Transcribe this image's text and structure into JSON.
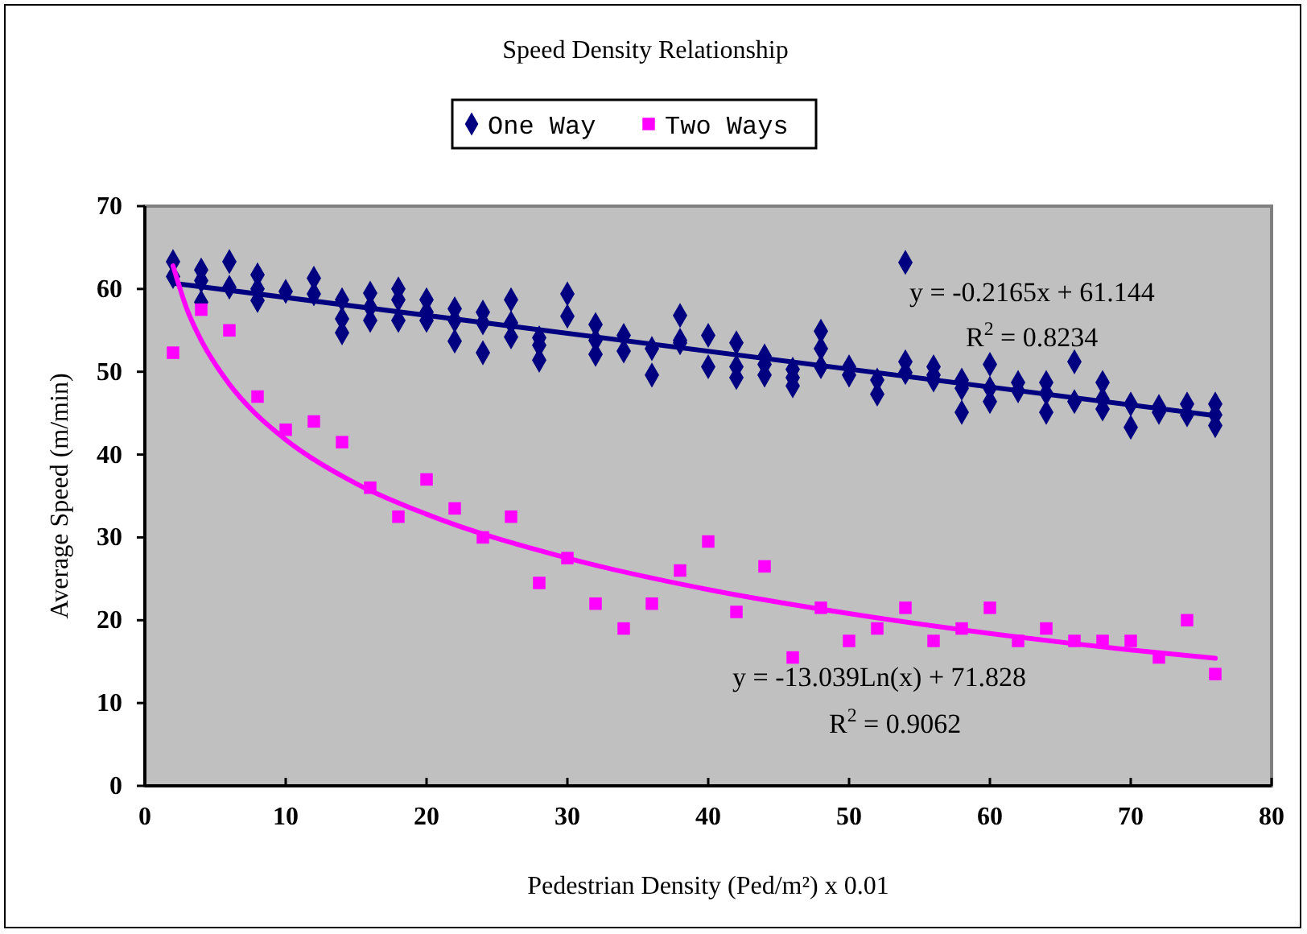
{
  "chart_data": {
    "type": "scatter",
    "title": "Speed Density Relationship",
    "xlabel": "Pedestrian Density (Ped/m²) x 0.01",
    "ylabel": "Average Speed (m/min)",
    "xlim": [
      0,
      80
    ],
    "xticks": [
      0,
      10,
      20,
      30,
      40,
      50,
      60,
      70,
      80
    ],
    "ylim": [
      0,
      70
    ],
    "yticks": [
      0,
      10,
      20,
      30,
      40,
      50,
      60,
      70
    ],
    "grid": false,
    "legend": "top",
    "annotations": [
      "y = -0.2165x + 61.144",
      "R$^{2}$ = 0.8234",
      "y = -13.039Ln(x) + 71.828",
      "R$^{2}$ = 0.9062"
    ],
    "series": [
      {
        "name": "One Way",
        "color": "#000080",
        "marker": "diamond",
        "x": [
          2,
          2,
          4,
          4,
          4,
          6,
          6,
          8,
          8,
          8,
          10,
          12,
          12,
          14,
          14,
          14,
          16,
          16,
          16,
          18,
          18,
          18,
          20,
          20,
          20,
          22,
          22,
          22,
          24,
          24,
          24,
          26,
          26,
          26,
          28,
          28,
          28,
          30,
          30,
          32,
          32,
          32,
          34,
          34,
          36,
          36,
          38,
          38,
          38,
          40,
          40,
          42,
          42,
          42,
          44,
          44,
          44,
          46,
          46,
          46,
          48,
          48,
          48,
          50,
          50,
          52,
          52,
          54,
          54,
          54,
          56,
          56,
          56,
          58,
          58,
          58,
          60,
          60,
          60,
          62,
          62,
          64,
          64,
          64,
          66,
          66,
          68,
          68,
          68,
          70,
          70,
          72,
          72,
          74,
          74,
          76,
          76,
          76
        ],
        "values": [
          63.3,
          61.5,
          62.3,
          61.0,
          58.4,
          63.3,
          60.2,
          61.7,
          60.0,
          58.6,
          59.7,
          61.3,
          59.4,
          58.7,
          56.4,
          54.7,
          59.5,
          57.8,
          56.2,
          60.0,
          58.7,
          56.2,
          58.7,
          57.2,
          56.2,
          57.6,
          56.2,
          53.7,
          57.2,
          55.9,
          52.3,
          58.7,
          55.9,
          54.2,
          54.1,
          53.2,
          51.4,
          59.4,
          56.7,
          55.7,
          53.8,
          52.1,
          54.4,
          52.5,
          52.8,
          49.6,
          56.8,
          53.8,
          53.5,
          54.4,
          50.6,
          53.5,
          50.6,
          49.3,
          51.9,
          50.9,
          49.6,
          50.3,
          49.3,
          48.3,
          54.9,
          52.8,
          50.6,
          50.6,
          49.6,
          49.0,
          47.3,
          63.2,
          51.2,
          49.9,
          50.6,
          49.6,
          49.0,
          49.0,
          48.0,
          45.1,
          50.9,
          48.0,
          46.4,
          48.7,
          47.7,
          48.7,
          47.4,
          45.1,
          51.2,
          46.4,
          48.7,
          46.7,
          45.5,
          46.1,
          43.3,
          45.8,
          45.1,
          46.1,
          44.8,
          46.1,
          44.8,
          43.5
        ]
      },
      {
        "name": "Two Ways",
        "color": "#ff00ff",
        "marker": "square",
        "x": [
          2,
          4,
          6,
          8,
          10,
          12,
          14,
          16,
          18,
          20,
          22,
          24,
          26,
          28,
          30,
          32,
          34,
          36,
          38,
          40,
          42,
          44,
          46,
          48,
          50,
          52,
          54,
          56,
          58,
          60,
          62,
          64,
          66,
          68,
          70,
          72,
          74,
          76
        ],
        "values": [
          52.3,
          57.5,
          55,
          47,
          43,
          44,
          41.5,
          36,
          32.5,
          37,
          33.5,
          30,
          32.5,
          24.5,
          27.5,
          22,
          19,
          22,
          26,
          29.5,
          21,
          26.5,
          15.5,
          21.5,
          17.5,
          19,
          21.5,
          17.5,
          19,
          21.5,
          17.5,
          19,
          17.5,
          17.5,
          17.5,
          15.5,
          20,
          13.5
        ]
      },
      {
        "type": "line",
        "color": "#000080",
        "marker": "none",
        "x": [
          2,
          76
        ],
        "values": [
          60.7,
          44.7
        ]
      },
      {
        "type": "line",
        "color": "#ff00ff",
        "marker": "none",
        "x": [
          2,
          3,
          4,
          6,
          8,
          10,
          15,
          20,
          30,
          40,
          50,
          60,
          70,
          76
        ],
        "values": [
          62.8,
          57.5,
          53.8,
          48.5,
          44.7,
          41.8,
          36.5,
          32.8,
          27.5,
          23.7,
          20.8,
          18.4,
          16.4,
          15.4
        ]
      }
    ]
  }
}
